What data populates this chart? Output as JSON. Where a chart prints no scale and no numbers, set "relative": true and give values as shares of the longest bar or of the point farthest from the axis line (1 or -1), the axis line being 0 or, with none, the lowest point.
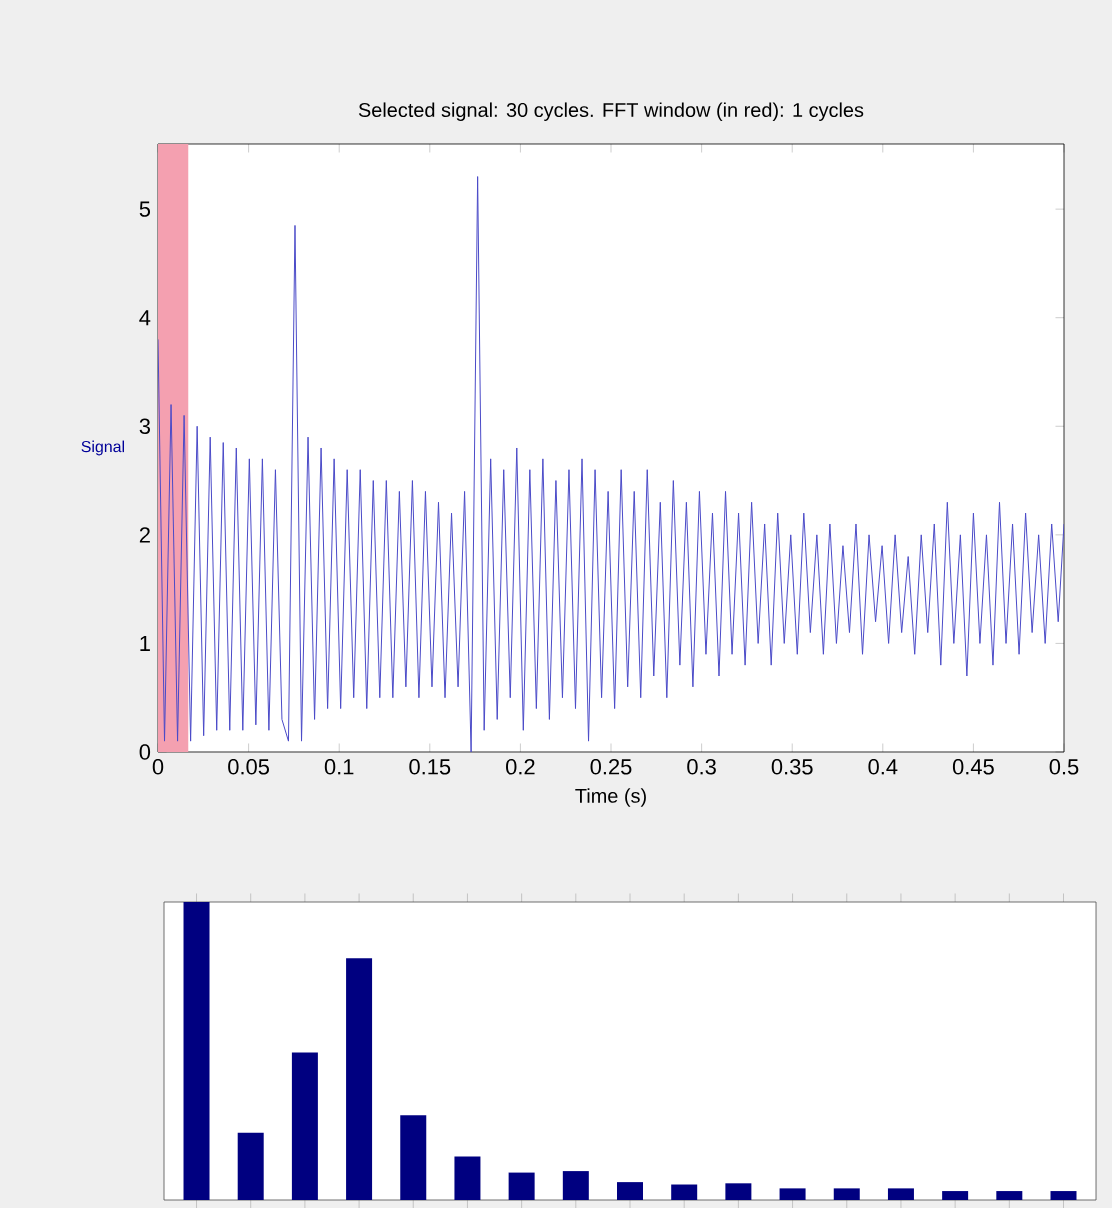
{
  "chart_data": [
    {
      "type": "line",
      "title": "Selected signal: 30 cycles. FFT window (in red): 1 cycles",
      "xlabel": "Time (s)",
      "ylabel": "Signal",
      "xlim": [
        0,
        0.5
      ],
      "xticks": [
        0,
        0.05,
        0.1,
        0.15,
        0.2,
        0.25,
        0.3,
        0.35,
        0.4,
        0.45,
        0.5
      ],
      "ylim": [
        0,
        5.6
      ],
      "yticks": [
        0,
        1,
        2,
        3,
        4,
        5
      ],
      "grid": false,
      "marker": "none",
      "line_style": "solid",
      "bands": [
        {
          "axis": "x",
          "from": 0,
          "to": 0.0167,
          "color": "#f4a0b0"
        }
      ],
      "x": [
        0,
        0.0036,
        0.0072,
        0.0108,
        0.0144,
        0.018,
        0.0216,
        0.0252,
        0.0288,
        0.0324,
        0.036,
        0.0396,
        0.0432,
        0.0468,
        0.0504,
        0.054,
        0.0576,
        0.0612,
        0.0648,
        0.0684,
        0.072,
        0.0756,
        0.0792,
        0.0828,
        0.0864,
        0.09,
        0.0936,
        0.0972,
        0.1008,
        0.1044,
        0.108,
        0.1116,
        0.1152,
        0.1188,
        0.1224,
        0.126,
        0.1296,
        0.1332,
        0.1368,
        0.1404,
        0.144,
        0.1476,
        0.1512,
        0.1548,
        0.1584,
        0.162,
        0.1656,
        0.1692,
        0.1728,
        0.1764,
        0.18,
        0.1836,
        0.1872,
        0.1908,
        0.1944,
        0.198,
        0.2016,
        0.2052,
        0.2088,
        0.2124,
        0.216,
        0.2196,
        0.2232,
        0.2268,
        0.2304,
        0.234,
        0.2376,
        0.2412,
        0.2448,
        0.2484,
        0.252,
        0.2556,
        0.2592,
        0.2628,
        0.2664,
        0.27,
        0.2736,
        0.2772,
        0.2808,
        0.2844,
        0.288,
        0.2916,
        0.2952,
        0.2988,
        0.3024,
        0.306,
        0.3096,
        0.3132,
        0.3168,
        0.3204,
        0.324,
        0.3276,
        0.3312,
        0.3348,
        0.3384,
        0.342,
        0.3456,
        0.3492,
        0.3528,
        0.3564,
        0.36,
        0.3636,
        0.3672,
        0.3708,
        0.3744,
        0.378,
        0.3816,
        0.3852,
        0.3888,
        0.3924,
        0.396,
        0.3996,
        0.4032,
        0.4068,
        0.4104,
        0.414,
        0.4176,
        0.4212,
        0.4248,
        0.4284,
        0.432,
        0.4356,
        0.4392,
        0.4428,
        0.4464,
        0.45,
        0.4536,
        0.4572,
        0.4608,
        0.4644,
        0.468,
        0.4716,
        0.4752,
        0.4788,
        0.4824,
        0.486,
        0.4896,
        0.4932,
        0.4968,
        0.5
      ],
      "series": [
        {
          "color": "#4a4ac8",
          "values": [
            3.8,
            0.1,
            3.2,
            0.1,
            3.1,
            0.1,
            3.0,
            0.15,
            2.9,
            0.2,
            2.85,
            0.2,
            2.8,
            0.2,
            2.7,
            0.25,
            2.7,
            0.2,
            2.6,
            0.3,
            0.1,
            4.85,
            0.1,
            2.9,
            0.3,
            2.8,
            0.4,
            2.7,
            0.4,
            2.6,
            0.5,
            2.6,
            0.4,
            2.5,
            0.5,
            2.5,
            0.5,
            2.4,
            0.6,
            2.5,
            0.5,
            2.4,
            0.6,
            2.3,
            0.5,
            2.2,
            0.6,
            2.4,
            0,
            5.3,
            0.2,
            2.7,
            0.3,
            2.6,
            0.5,
            2.8,
            0.2,
            2.6,
            0.4,
            2.7,
            0.3,
            2.5,
            0.5,
            2.6,
            0.4,
            2.7,
            0.1,
            2.6,
            0.5,
            2.4,
            0.4,
            2.6,
            0.6,
            2.4,
            0.5,
            2.6,
            0.7,
            2.3,
            0.5,
            2.5,
            0.8,
            2.3,
            0.6,
            2.4,
            0.9,
            2.2,
            0.7,
            2.4,
            0.9,
            2.2,
            0.8,
            2.3,
            1.0,
            2.1,
            0.8,
            2.2,
            1.0,
            2.0,
            0.9,
            2.2,
            1.1,
            2.0,
            0.9,
            2.1,
            1.0,
            1.9,
            1.1,
            2.1,
            0.9,
            2.0,
            1.2,
            1.9,
            1.0,
            2.0,
            1.1,
            1.8,
            0.9,
            2.0,
            1.1,
            2.1,
            0.8,
            2.3,
            1.0,
            2.0,
            0.7,
            2.2,
            1.0,
            2.0,
            0.8,
            2.3,
            1.0,
            2.1,
            0.9,
            2.2,
            1.1,
            2.0,
            1.0,
            2.1,
            1.2,
            2.1
          ]
        }
      ]
    },
    {
      "type": "bar",
      "relative": true,
      "color": "#000080",
      "categories": [
        null,
        null,
        null,
        null,
        null,
        null,
        null,
        null,
        null,
        null,
        null,
        null,
        null,
        null,
        null,
        null,
        null
      ],
      "values": [
        1,
        0.226,
        0.495,
        0.811,
        0.284,
        0.146,
        0.092,
        0.097,
        0.06,
        0.052,
        0.056,
        0.039,
        0.039,
        0.039,
        0.03,
        0.03,
        0.03
      ]
    }
  ]
}
